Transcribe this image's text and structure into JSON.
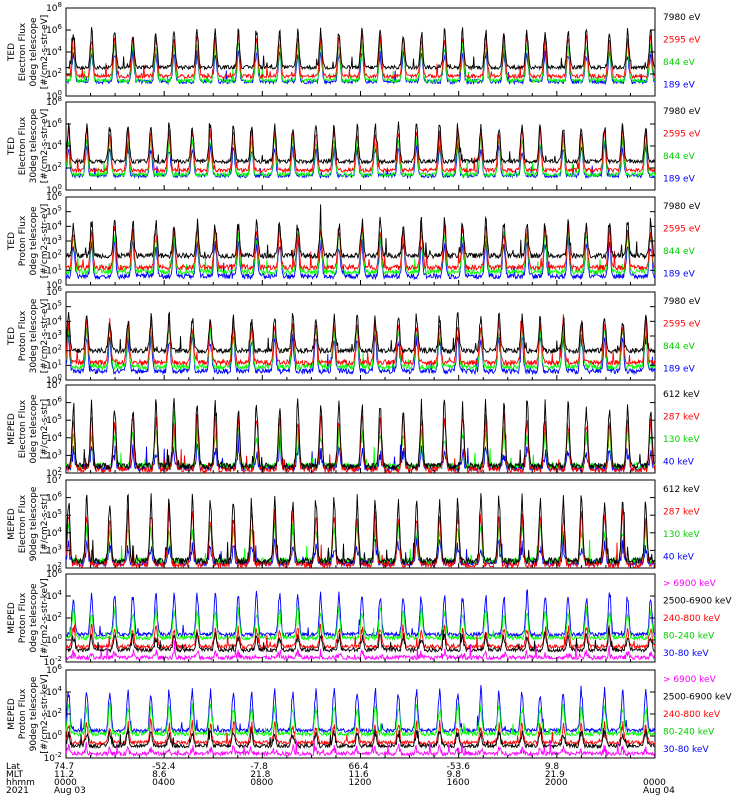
{
  "chart_data": [
    {
      "type": "line",
      "ylabel": [
        "TED",
        "Electron Flux",
        "0deg telescope",
        "[#/cm2-s-str-eV]"
      ],
      "ytick_exponents": [
        0,
        2,
        4,
        6,
        8
      ],
      "log_y": true,
      "ylim_log10": [
        0,
        8
      ],
      "series": [
        {
          "name": "7980 eV",
          "color": "#000000"
        },
        {
          "name": "2595 eV",
          "color": "#ff0000"
        },
        {
          "name": "844 eV",
          "color": "#00ff00"
        },
        {
          "name": "189 eV",
          "color": "#0000ff"
        }
      ]
    },
    {
      "type": "line",
      "ylabel": [
        "TED",
        "Electron Flux",
        "30deg telescope",
        "[#/cm2-s-str-eV]"
      ],
      "ytick_exponents": [
        0,
        2,
        4,
        6,
        8
      ],
      "log_y": true,
      "ylim_log10": [
        0,
        8
      ],
      "series": [
        {
          "name": "7980 eV",
          "color": "#000000"
        },
        {
          "name": "2595 eV",
          "color": "#ff0000"
        },
        {
          "name": "844 eV",
          "color": "#00ff00"
        },
        {
          "name": "189 eV",
          "color": "#0000ff"
        }
      ]
    },
    {
      "type": "line",
      "ylabel": [
        "TED",
        "Proton Flux",
        "0deg telescope",
        "[#/cm2-s-str-eV]"
      ],
      "ytick_exponents": [
        0,
        1,
        2,
        3,
        4,
        5,
        6
      ],
      "log_y": true,
      "ylim_log10": [
        0,
        6
      ],
      "series": [
        {
          "name": "7980 eV",
          "color": "#000000"
        },
        {
          "name": "2595 eV",
          "color": "#ff0000"
        },
        {
          "name": "844 eV",
          "color": "#00ff00"
        },
        {
          "name": "189 eV",
          "color": "#0000ff"
        }
      ]
    },
    {
      "type": "line",
      "ylabel": [
        "TED",
        "Proton Flux",
        "30deg telescope",
        "[#/cm2-s-str-eV]"
      ],
      "ytick_exponents": [
        0,
        1,
        2,
        3,
        4,
        5,
        6
      ],
      "log_y": true,
      "ylim_log10": [
        0,
        6
      ],
      "series": [
        {
          "name": "7980 eV",
          "color": "#000000"
        },
        {
          "name": "2595 eV",
          "color": "#ff0000"
        },
        {
          "name": "844 eV",
          "color": "#00ff00"
        },
        {
          "name": "189 eV",
          "color": "#0000ff"
        }
      ]
    },
    {
      "type": "line",
      "ylabel": [
        "MEPED",
        "Electron Flux",
        "0deg telescope",
        "[#/cm2-s-str]"
      ],
      "ytick_exponents": [
        2,
        3,
        4,
        5,
        6,
        7
      ],
      "log_y": true,
      "ylim_log10": [
        2,
        7
      ],
      "series": [
        {
          "name": "612 keV",
          "color": "#000000"
        },
        {
          "name": "287 keV",
          "color": "#ff0000"
        },
        {
          "name": "130 keV",
          "color": "#00ff00"
        },
        {
          "name": "40 keV",
          "color": "#0000ff"
        }
      ]
    },
    {
      "type": "line",
      "ylabel": [
        "MEPED",
        "Electron Flux",
        "90deg telescope",
        "[#/cm2-s-str]"
      ],
      "ytick_exponents": [
        2,
        3,
        4,
        5,
        6,
        7
      ],
      "log_y": true,
      "ylim_log10": [
        2,
        7
      ],
      "series": [
        {
          "name": "612 keV",
          "color": "#000000"
        },
        {
          "name": "287 keV",
          "color": "#ff0000"
        },
        {
          "name": "130 keV",
          "color": "#00ff00"
        },
        {
          "name": "40 keV",
          "color": "#0000ff"
        }
      ]
    },
    {
      "type": "line",
      "ylabel": [
        "MEPED",
        "Proton Flux",
        "0deg telescope",
        "[#/cm2-s-str-keV]"
      ],
      "ytick_exponents": [
        -2,
        0,
        2,
        4,
        6
      ],
      "log_y": true,
      "ylim_log10": [
        -2,
        6
      ],
      "series": [
        {
          "name": "> 6900 keV",
          "color": "#ff00ff"
        },
        {
          "name": "2500-6900 keV",
          "color": "#000000"
        },
        {
          "name": "240-800 keV",
          "color": "#ff0000"
        },
        {
          "name": "80-240 keV",
          "color": "#00ff00"
        },
        {
          "name": "30-80 keV",
          "color": "#0000ff"
        }
      ]
    },
    {
      "type": "line",
      "ylabel": [
        "MEPED",
        "Proton Flux",
        "90deg telescope",
        "[#/cm2-s-str-keV]"
      ],
      "ytick_exponents": [
        -2,
        0,
        2,
        4,
        6
      ],
      "log_y": true,
      "ylim_log10": [
        -2,
        6
      ],
      "series": [
        {
          "name": "> 6900 keV",
          "color": "#ff00ff"
        },
        {
          "name": "2500-6900 keV",
          "color": "#000000"
        },
        {
          "name": "240-800 keV",
          "color": "#ff0000"
        },
        {
          "name": "80-240 keV",
          "color": "#00ff00"
        },
        {
          "name": "30-80 keV",
          "color": "#0000ff"
        }
      ]
    }
  ],
  "x_axis": {
    "row_labels": [
      "Lat",
      "MLT",
      "hhmm",
      "2021"
    ],
    "columns": [
      {
        "lat": "74.7",
        "mlt": "11.2",
        "hhmm": "0000",
        "date": "Aug 03"
      },
      {
        "lat": "-52.4",
        "mlt": "8.6",
        "hhmm": "0400",
        "date": ""
      },
      {
        "lat": "-7.8",
        "mlt": "21.8",
        "hhmm": "0800",
        "date": ""
      },
      {
        "lat": "66.4",
        "mlt": "11.6",
        "hhmm": "1200",
        "date": ""
      },
      {
        "lat": "-53.6",
        "mlt": "9.8",
        "hhmm": "1600",
        "date": ""
      },
      {
        "lat": "9.8",
        "mlt": "21.9",
        "hhmm": "2000",
        "date": ""
      },
      {
        "lat": "",
        "mlt": "",
        "hhmm": "0000",
        "date": "Aug 04"
      }
    ],
    "range_hours": [
      0,
      24
    ],
    "orbit_period_hours": 1.68
  }
}
